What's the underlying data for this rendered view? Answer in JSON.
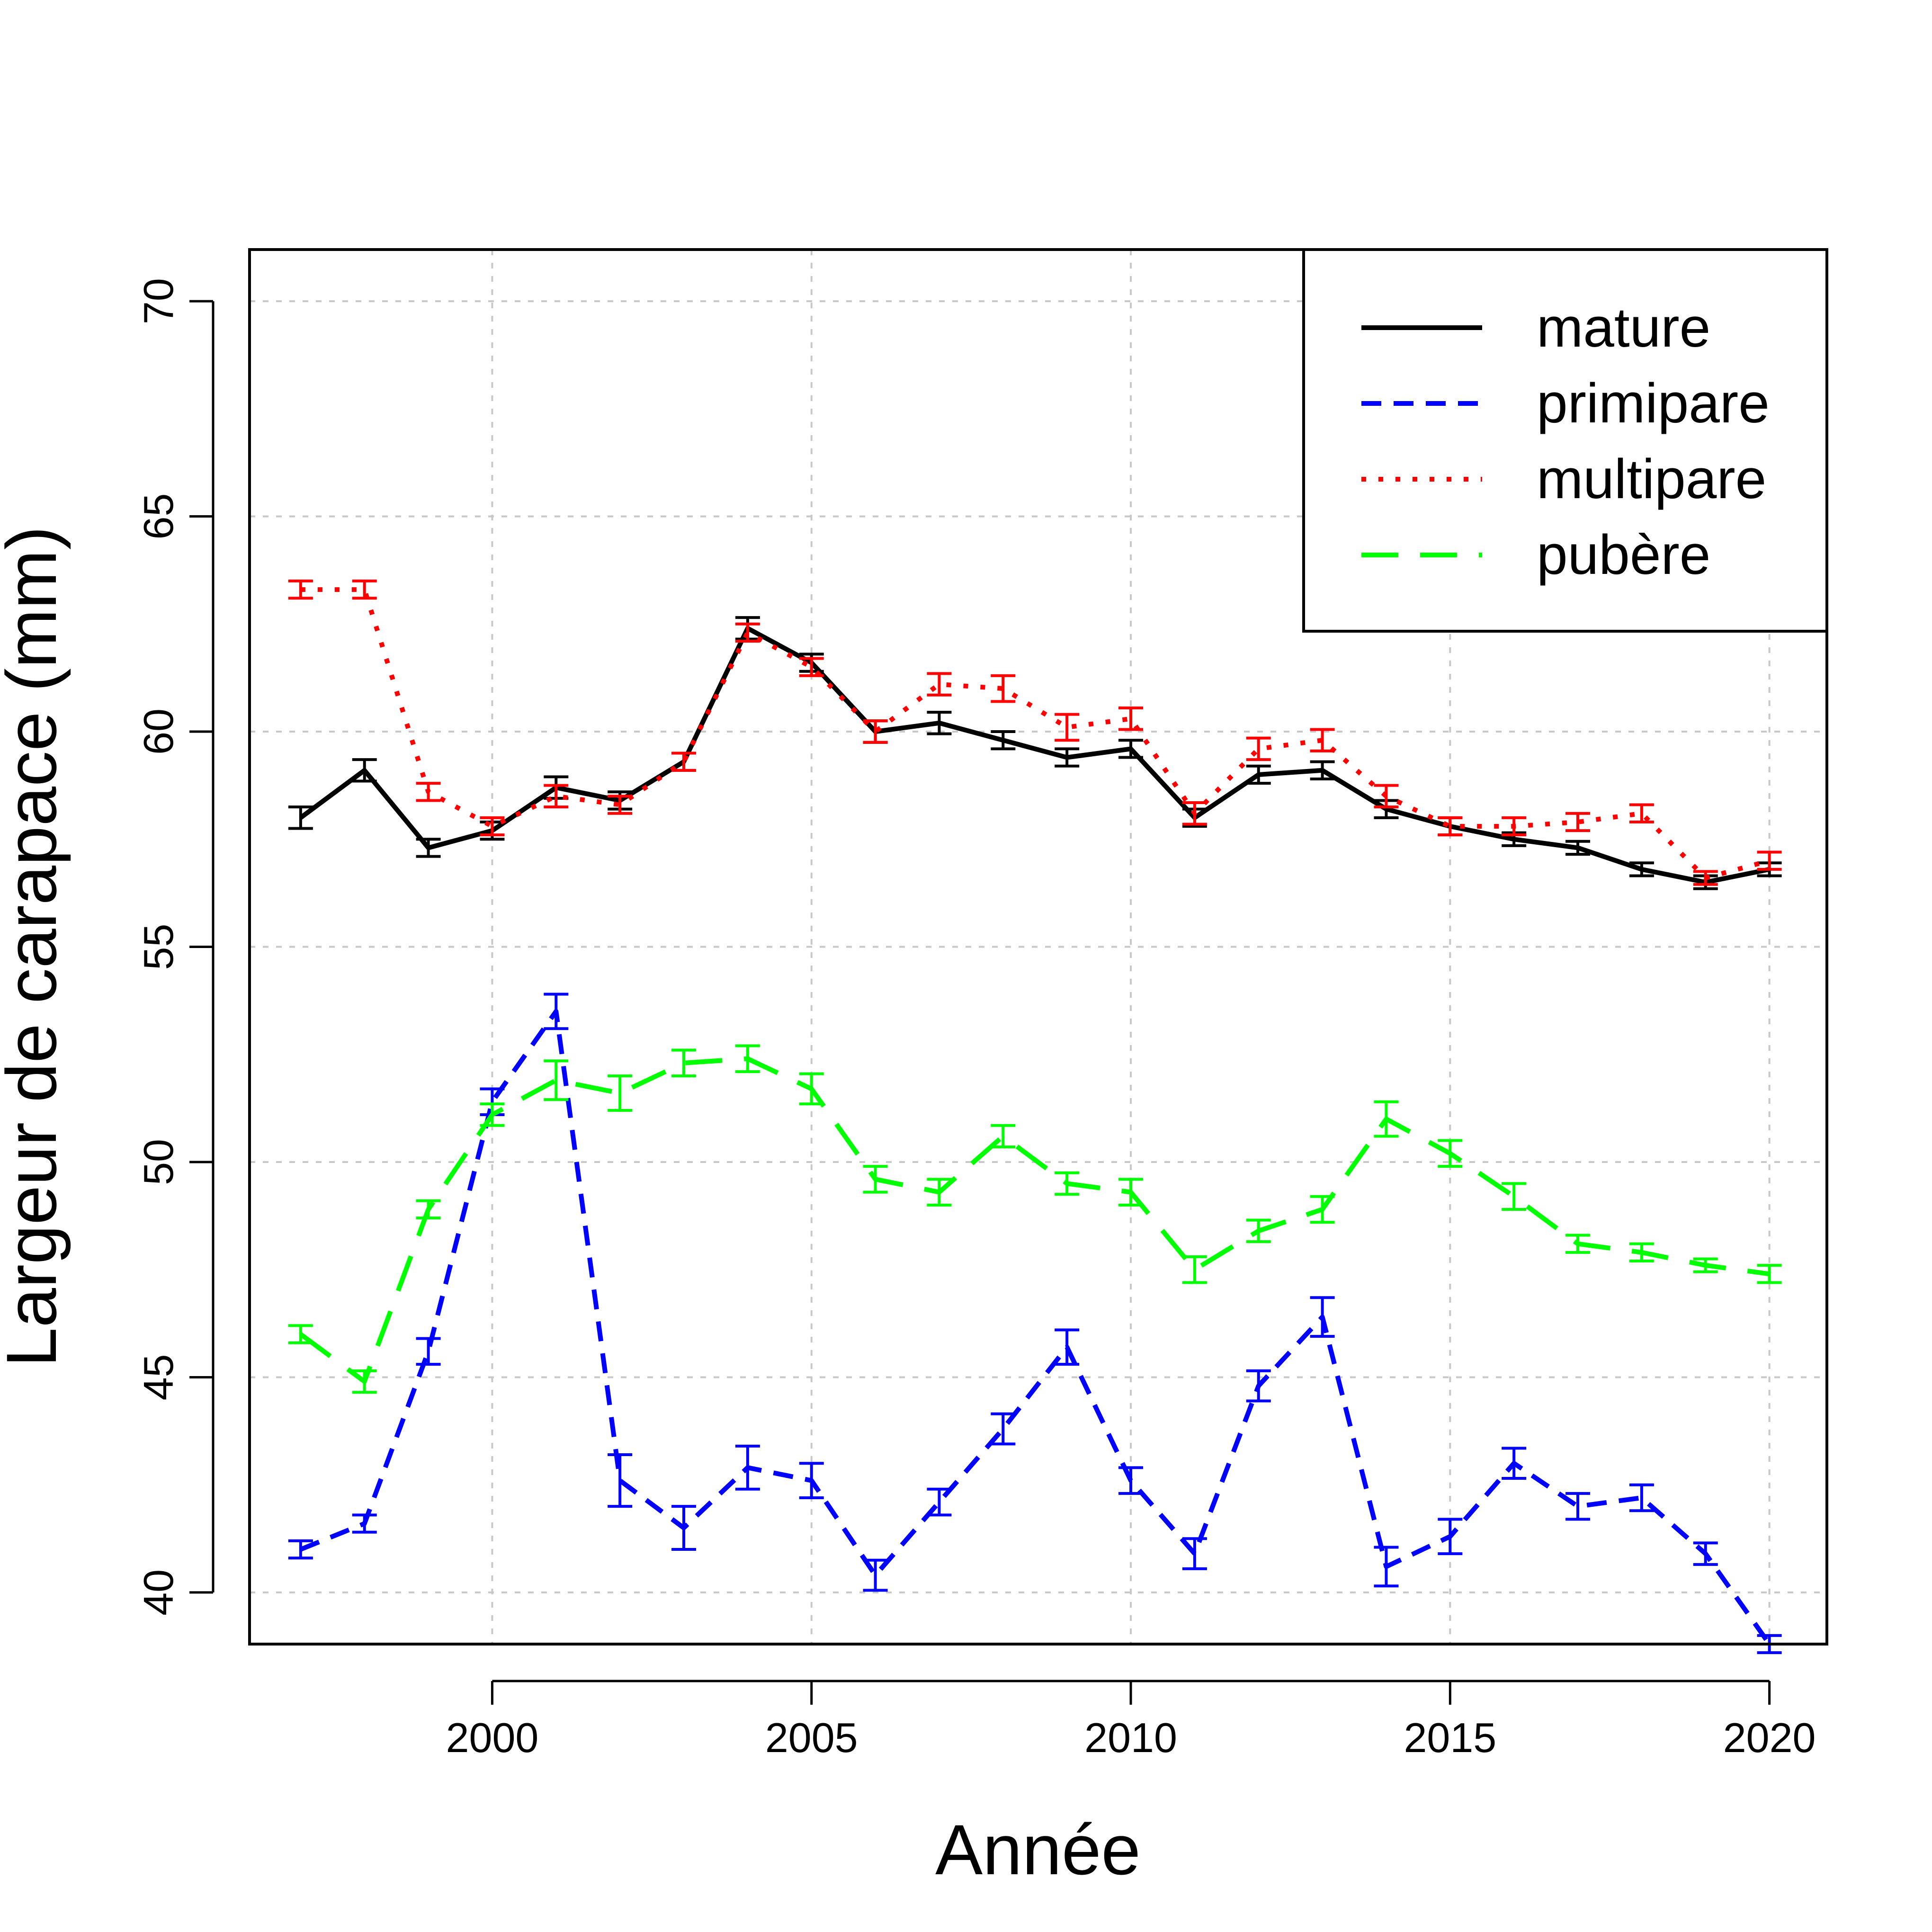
{
  "chart_data": {
    "type": "line",
    "title": "",
    "xlabel": "Année",
    "ylabel": "Largeur de carapace (mm)",
    "xlim": [
      1996.2,
      2020.9
    ],
    "ylim": [
      38.8,
      71.2
    ],
    "xticks": [
      2000,
      2005,
      2010,
      2015,
      2020
    ],
    "yticks": [
      40,
      45,
      50,
      55,
      60,
      65,
      70
    ],
    "grid": true,
    "legend": "top-right",
    "x": [
      1997,
      1998,
      1999,
      2000,
      2001,
      2002,
      2003,
      2004,
      2005,
      2006,
      2007,
      2008,
      2009,
      2010,
      2011,
      2012,
      2013,
      2014,
      2015,
      2016,
      2017,
      2018,
      2019,
      2020
    ],
    "series": [
      {
        "name": "mature",
        "color": "#000000",
        "dash": "solid",
        "values": [
          58.0,
          59.1,
          57.3,
          57.7,
          58.7,
          58.4,
          59.3,
          62.4,
          61.6,
          60.0,
          60.2,
          59.8,
          59.4,
          59.6,
          58.0,
          59.0,
          59.1,
          58.2,
          57.8,
          57.5,
          57.3,
          56.8,
          56.5,
          56.8
        ],
        "errors": [
          0.25,
          0.25,
          0.2,
          0.2,
          0.25,
          0.2,
          0.2,
          0.25,
          0.2,
          0.25,
          0.25,
          0.2,
          0.2,
          0.2,
          0.2,
          0.2,
          0.2,
          0.2,
          0.2,
          0.15,
          0.15,
          0.15,
          0.15,
          0.15
        ]
      },
      {
        "name": "primipare",
        "color": "#0000ff",
        "dash": "dashed",
        "values": [
          41.0,
          41.6,
          45.6,
          51.4,
          53.5,
          42.6,
          41.5,
          42.9,
          42.6,
          40.4,
          42.1,
          43.8,
          45.7,
          42.6,
          40.9,
          44.8,
          46.4,
          40.6,
          41.3,
          43.0,
          42.0,
          42.2,
          40.9,
          38.8
        ],
        "errors": [
          0.2,
          0.2,
          0.3,
          0.3,
          0.4,
          0.6,
          0.5,
          0.5,
          0.4,
          0.35,
          0.3,
          0.35,
          0.4,
          0.3,
          0.35,
          0.35,
          0.45,
          0.45,
          0.4,
          0.35,
          0.3,
          0.3,
          0.25,
          0.2
        ]
      },
      {
        "name": "multipare",
        "color": "#ff0000",
        "dash": "dotted",
        "values": [
          63.3,
          63.3,
          58.6,
          57.8,
          58.5,
          58.3,
          59.3,
          62.3,
          61.5,
          60.0,
          61.1,
          61.0,
          60.1,
          60.3,
          58.1,
          59.6,
          59.8,
          58.5,
          57.8,
          57.8,
          57.9,
          58.1,
          56.6,
          57.0
        ],
        "errors": [
          0.2,
          0.2,
          0.2,
          0.2,
          0.25,
          0.2,
          0.2,
          0.2,
          0.2,
          0.25,
          0.25,
          0.3,
          0.3,
          0.25,
          0.25,
          0.25,
          0.25,
          0.25,
          0.2,
          0.2,
          0.2,
          0.2,
          0.15,
          0.2
        ]
      },
      {
        "name": "pubère",
        "color": "#00ff00",
        "dash": "longdash",
        "values": [
          46.0,
          44.9,
          48.9,
          51.1,
          51.9,
          51.6,
          52.3,
          52.4,
          51.7,
          49.6,
          49.3,
          50.6,
          49.5,
          49.3,
          47.5,
          48.4,
          48.9,
          51.0,
          50.2,
          49.2,
          48.1,
          47.9,
          47.6,
          47.4
        ],
        "errors": [
          0.2,
          0.25,
          0.2,
          0.25,
          0.45,
          0.4,
          0.3,
          0.3,
          0.35,
          0.3,
          0.3,
          0.25,
          0.25,
          0.3,
          0.3,
          0.25,
          0.3,
          0.4,
          0.3,
          0.3,
          0.2,
          0.2,
          0.15,
          0.2
        ]
      }
    ]
  }
}
